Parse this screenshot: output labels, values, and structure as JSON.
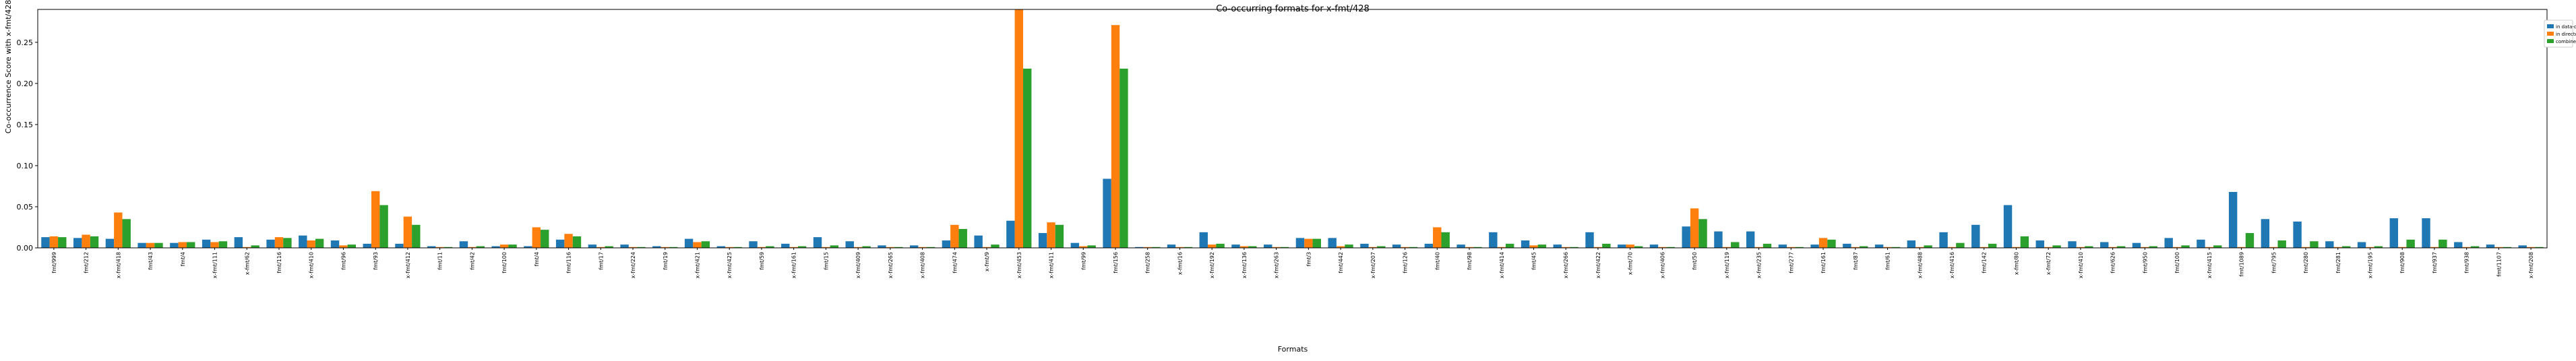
{
  "chart_data": {
    "type": "bar",
    "title": "Co-occurring formats for x-fmt/428",
    "xlabel": "Formats",
    "ylabel": "Co-occurrence Score with x-fmt/428",
    "ylim": [
      0,
      0.29
    ],
    "yticks": [
      0.0,
      0.05,
      0.1,
      0.15,
      0.2,
      0.25
    ],
    "ytick_labels": [
      "0.00",
      "0.05",
      "0.10",
      "0.15",
      "0.20",
      "0.25"
    ],
    "grid": false,
    "legend_position": "outside top-right",
    "categories": [
      "fmt/999",
      "fmt/212",
      "x-fmt/418",
      "fmt/43",
      "fmt/4",
      "x-fmt/111",
      "x-fmt/62",
      "fmt/116",
      "x-fmt/410",
      "fmt/96",
      "fmt/93",
      "x-fmt/412",
      "fmt/11",
      "fmt/42",
      "fmt/100",
      "fmt/4",
      "fmt/116",
      "fmt/17",
      "x-fmt/224",
      "fmt/19",
      "x-fmt/421",
      "x-fmt/425",
      "fmt/59",
      "x-fmt/161",
      "fmt/15",
      "x-fmt/409",
      "x-fmt/265",
      "x-fmt/408",
      "fmt/474",
      "x-fmt/9",
      "x-fmt/453",
      "x-fmt/411",
      "fmt/99",
      "fmt/156",
      "fmt/258",
      "x-fmt/16",
      "x-fmt/192",
      "x-fmt/136",
      "x-fmt/263",
      "fmt/3",
      "fmt/442",
      "x-fmt/207",
      "fmt/126",
      "fmt/40",
      "fmt/98",
      "x-fmt/414",
      "fmt/45",
      "x-fmt/266",
      "x-fmt/422",
      "x-fmt/70",
      "x-fmt/406",
      "fmt/50",
      "x-fmt/119",
      "x-fmt/235",
      "fmt/277",
      "fmt/161",
      "fmt/87",
      "fmt/61",
      "x-fmt/488",
      "x-fmt/416",
      "fmt/142",
      "x-fmt/80",
      "x-fmt/72",
      "x-fmt/410",
      "fmt/626",
      "fmt/950",
      "fmt/100",
      "x-fmt/415",
      "fmt/1089",
      "fmt/795",
      "fmt/280",
      "fmt/281",
      "x-fmt/195",
      "fmt/908",
      "fmt/937",
      "fmt/938",
      "fmt/1107",
      "x-fmt/208"
    ],
    "series": [
      {
        "name": "in data-objects",
        "color": "#1f77b4",
        "values": [
          0.013,
          0.012,
          0.011,
          0.006,
          0.006,
          0.01,
          0.013,
          0.01,
          0.015,
          0.009,
          0.005,
          0.005,
          0.002,
          0.008,
          0.002,
          0.002,
          0.01,
          0.004,
          0.004,
          0.002,
          0.011,
          0.002,
          0.008,
          0.005,
          0.013,
          0.008,
          0.003,
          0.003,
          0.009,
          0.015,
          0.033,
          0.018,
          0.006,
          0.084,
          0.001,
          0.004,
          0.019,
          0.004,
          0.004,
          0.012,
          0.012,
          0.005,
          0.004,
          0.005,
          0.004,
          0.019,
          0.009,
          0.004,
          0.019,
          0.004,
          0.004,
          0.026,
          0.02,
          0.02,
          0.004,
          0.004,
          0.005,
          0.004,
          0.009,
          0.019,
          0.028,
          0.052,
          0.009,
          0.008,
          0.007,
          0.006,
          0.012,
          0.01,
          0.068,
          0.035,
          0.032,
          0.008,
          0.007,
          0.036,
          0.036,
          0.007,
          0.004,
          0.003
        ]
      },
      {
        "name": "in directories",
        "color": "#ff7f0e",
        "values": [
          0.014,
          0.016,
          0.043,
          0.006,
          0.007,
          0.007,
          0.001,
          0.013,
          0.009,
          0.003,
          0.069,
          0.038,
          0.001,
          0.001,
          0.004,
          0.025,
          0.017,
          0.001,
          0.001,
          0.001,
          0.007,
          0.001,
          0.001,
          0.001,
          0.001,
          0.001,
          0.001,
          0.001,
          0.028,
          0.001,
          0.29,
          0.031,
          0.002,
          0.271,
          0.001,
          0.001,
          0.004,
          0.002,
          0.001,
          0.011,
          0.002,
          0.001,
          0.001,
          0.025,
          0.001,
          0.001,
          0.003,
          0.001,
          0.001,
          0.004,
          0.001,
          0.048,
          0.001,
          0.001,
          0.001,
          0.012,
          0.001,
          0.001,
          0.001,
          0.001,
          0.001,
          0.001,
          0.001,
          0.001,
          0.001,
          0.001,
          0.001,
          0.001,
          0.001,
          0.001,
          0.001,
          0.001,
          0.001,
          0.001,
          0.001,
          0.001,
          0.001,
          0.001
        ]
      },
      {
        "name": "combined",
        "color": "#2ca02c",
        "values": [
          0.013,
          0.014,
          0.035,
          0.006,
          0.007,
          0.008,
          0.003,
          0.012,
          0.011,
          0.004,
          0.052,
          0.028,
          0.001,
          0.002,
          0.004,
          0.022,
          0.014,
          0.002,
          0.001,
          0.001,
          0.008,
          0.001,
          0.002,
          0.002,
          0.003,
          0.002,
          0.001,
          0.001,
          0.023,
          0.004,
          0.218,
          0.028,
          0.003,
          0.218,
          0.001,
          0.001,
          0.005,
          0.002,
          0.001,
          0.011,
          0.004,
          0.002,
          0.001,
          0.019,
          0.001,
          0.005,
          0.004,
          0.001,
          0.005,
          0.002,
          0.001,
          0.035,
          0.007,
          0.005,
          0.001,
          0.01,
          0.002,
          0.001,
          0.003,
          0.006,
          0.005,
          0.014,
          0.003,
          0.002,
          0.002,
          0.002,
          0.003,
          0.003,
          0.018,
          0.009,
          0.008,
          0.002,
          0.002,
          0.01,
          0.01,
          0.002,
          0.001,
          0.001
        ]
      }
    ]
  }
}
